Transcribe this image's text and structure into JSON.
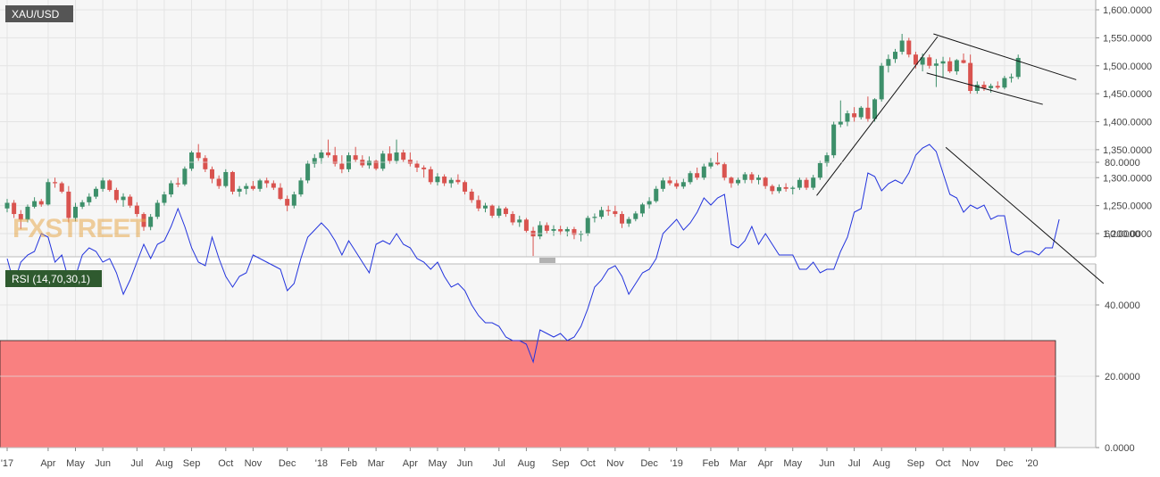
{
  "chart_data": {
    "type": "candlestick",
    "price_panel": {
      "label": "XAU/USD",
      "watermark": "FXSTREET",
      "y_ticks": [
        "1,600.0000",
        "1,550.0000",
        "1,500.0000",
        "1,450.0000",
        "1,400.0000",
        "1,350.0000",
        "1,300.0000",
        "1,250.0000",
        "1,200.0000"
      ],
      "ylim": [
        1160,
        1610
      ],
      "grid": true,
      "up_color": "#3d8f6a",
      "down_color": "#d9534f",
      "candles": [
        [
          1245,
          1262,
          1238,
          1255
        ],
        [
          1255,
          1260,
          1228,
          1235
        ],
        [
          1235,
          1242,
          1208,
          1225
        ],
        [
          1225,
          1252,
          1220,
          1248
        ],
        [
          1248,
          1265,
          1245,
          1258
        ],
        [
          1258,
          1262,
          1248,
          1252
        ],
        [
          1252,
          1298,
          1250,
          1292
        ],
        [
          1292,
          1300,
          1282,
          1290
        ],
        [
          1290,
          1293,
          1272,
          1275
        ],
        [
          1275,
          1285,
          1220,
          1228
        ],
        [
          1228,
          1255,
          1222,
          1248
        ],
        [
          1248,
          1260,
          1244,
          1256
        ],
        [
          1256,
          1272,
          1250,
          1266
        ],
        [
          1266,
          1284,
          1262,
          1280
        ],
        [
          1280,
          1300,
          1275,
          1295
        ],
        [
          1295,
          1297,
          1275,
          1278
        ],
        [
          1278,
          1282,
          1255,
          1260
        ],
        [
          1260,
          1272,
          1248,
          1266
        ],
        [
          1266,
          1270,
          1246,
          1250
        ],
        [
          1250,
          1256,
          1230,
          1235
        ],
        [
          1235,
          1238,
          1205,
          1212
        ],
        [
          1212,
          1235,
          1206,
          1230
        ],
        [
          1230,
          1260,
          1226,
          1255
        ],
        [
          1255,
          1275,
          1250,
          1270
        ],
        [
          1270,
          1295,
          1265,
          1290
        ],
        [
          1290,
          1300,
          1283,
          1288
        ],
        [
          1288,
          1320,
          1285,
          1316
        ],
        [
          1316,
          1348,
          1312,
          1345
        ],
        [
          1345,
          1360,
          1330,
          1335
        ],
        [
          1335,
          1340,
          1310,
          1315
        ],
        [
          1315,
          1320,
          1290,
          1298
        ],
        [
          1298,
          1304,
          1280,
          1285
        ],
        [
          1285,
          1315,
          1282,
          1310
        ],
        [
          1310,
          1312,
          1270,
          1275
        ],
        [
          1275,
          1285,
          1266,
          1280
        ],
        [
          1280,
          1290,
          1270,
          1285
        ],
        [
          1285,
          1294,
          1277,
          1280
        ],
        [
          1280,
          1298,
          1275,
          1295
        ],
        [
          1295,
          1300,
          1282,
          1290
        ],
        [
          1290,
          1295,
          1278,
          1282
        ],
        [
          1282,
          1290,
          1260,
          1262
        ],
        [
          1262,
          1268,
          1240,
          1250
        ],
        [
          1250,
          1275,
          1245,
          1270
        ],
        [
          1270,
          1300,
          1266,
          1295
        ],
        [
          1295,
          1330,
          1290,
          1325
        ],
        [
          1325,
          1342,
          1318,
          1335
        ],
        [
          1335,
          1350,
          1325,
          1345
        ],
        [
          1345,
          1368,
          1336,
          1340
        ],
        [
          1340,
          1355,
          1320,
          1325
        ],
        [
          1325,
          1340,
          1308,
          1315
        ],
        [
          1315,
          1345,
          1310,
          1340
        ],
        [
          1340,
          1355,
          1328,
          1332
        ],
        [
          1332,
          1340,
          1318,
          1322
        ],
        [
          1322,
          1338,
          1316,
          1330
        ],
        [
          1330,
          1332,
          1313,
          1316
        ],
        [
          1316,
          1348,
          1312,
          1343
        ],
        [
          1343,
          1356,
          1325,
          1330
        ],
        [
          1330,
          1368,
          1325,
          1345
        ],
        [
          1345,
          1350,
          1328,
          1332
        ],
        [
          1332,
          1345,
          1320,
          1325
        ],
        [
          1325,
          1330,
          1310,
          1318
        ],
        [
          1318,
          1322,
          1300,
          1315
        ],
        [
          1315,
          1320,
          1288,
          1292
        ],
        [
          1292,
          1308,
          1286,
          1302
        ],
        [
          1302,
          1306,
          1285,
          1290
        ],
        [
          1290,
          1300,
          1282,
          1296
        ],
        [
          1296,
          1306,
          1288,
          1292
        ],
        [
          1292,
          1295,
          1270,
          1275
        ],
        [
          1275,
          1280,
          1255,
          1260
        ],
        [
          1260,
          1268,
          1240,
          1245
        ],
        [
          1245,
          1255,
          1238,
          1250
        ],
        [
          1250,
          1252,
          1228,
          1232
        ],
        [
          1232,
          1250,
          1228,
          1245
        ],
        [
          1245,
          1248,
          1230,
          1235
        ],
        [
          1235,
          1240,
          1215,
          1220
        ],
        [
          1220,
          1232,
          1212,
          1225
        ],
        [
          1225,
          1228,
          1202,
          1205
        ],
        [
          1205,
          1212,
          1160,
          1195
        ],
        [
          1195,
          1222,
          1190,
          1215
        ],
        [
          1215,
          1220,
          1200,
          1205
        ],
        [
          1205,
          1215,
          1196,
          1208
        ],
        [
          1208,
          1214,
          1198,
          1204
        ],
        [
          1204,
          1212,
          1195,
          1208
        ],
        [
          1208,
          1212,
          1190,
          1198
        ],
        [
          1198,
          1205,
          1186,
          1200
        ],
        [
          1200,
          1232,
          1196,
          1228
        ],
        [
          1228,
          1236,
          1220,
          1230
        ],
        [
          1230,
          1248,
          1226,
          1242
        ],
        [
          1242,
          1250,
          1232,
          1240
        ],
        [
          1240,
          1250,
          1230,
          1235
        ],
        [
          1235,
          1240,
          1210,
          1218
        ],
        [
          1218,
          1230,
          1212,
          1226
        ],
        [
          1226,
          1240,
          1222,
          1236
        ],
        [
          1236,
          1255,
          1230,
          1252
        ],
        [
          1252,
          1265,
          1245,
          1258
        ],
        [
          1258,
          1285,
          1255,
          1280
        ],
        [
          1280,
          1300,
          1275,
          1295
        ],
        [
          1295,
          1302,
          1286,
          1290
        ],
        [
          1290,
          1296,
          1280,
          1284
        ],
        [
          1284,
          1298,
          1280,
          1292
        ],
        [
          1292,
          1312,
          1288,
          1308
        ],
        [
          1308,
          1318,
          1296,
          1300
        ],
        [
          1300,
          1325,
          1296,
          1320
        ],
        [
          1320,
          1335,
          1316,
          1328
        ],
        [
          1328,
          1345,
          1322,
          1324
        ],
        [
          1324,
          1328,
          1295,
          1300
        ],
        [
          1300,
          1302,
          1282,
          1290
        ],
        [
          1290,
          1300,
          1286,
          1296
        ],
        [
          1296,
          1310,
          1290,
          1306
        ],
        [
          1306,
          1310,
          1290,
          1296
        ],
        [
          1296,
          1305,
          1288,
          1300
        ],
        [
          1300,
          1302,
          1280,
          1285
        ],
        [
          1285,
          1288,
          1270,
          1276
        ],
        [
          1276,
          1288,
          1272,
          1283
        ],
        [
          1283,
          1290,
          1275,
          1280
        ],
        [
          1280,
          1285,
          1270,
          1282
        ],
        [
          1282,
          1300,
          1278,
          1296
        ],
        [
          1296,
          1300,
          1278,
          1282
        ],
        [
          1282,
          1305,
          1278,
          1300
        ],
        [
          1300,
          1330,
          1296,
          1326
        ],
        [
          1326,
          1345,
          1320,
          1340
        ],
        [
          1340,
          1400,
          1335,
          1395
        ],
        [
          1395,
          1438,
          1390,
          1400
        ],
        [
          1400,
          1420,
          1392,
          1415
        ],
        [
          1415,
          1426,
          1400,
          1408
        ],
        [
          1408,
          1428,
          1404,
          1425
        ],
        [
          1425,
          1445,
          1400,
          1405
        ],
        [
          1405,
          1442,
          1400,
          1440
        ],
        [
          1440,
          1505,
          1436,
          1500
        ],
        [
          1500,
          1520,
          1488,
          1512
        ],
        [
          1512,
          1530,
          1505,
          1525
        ],
        [
          1525,
          1557,
          1520,
          1545
        ],
        [
          1545,
          1550,
          1515,
          1520
        ],
        [
          1520,
          1525,
          1495,
          1502
        ],
        [
          1502,
          1522,
          1490,
          1515
        ],
        [
          1515,
          1520,
          1495,
          1500
        ],
        [
          1500,
          1512,
          1462,
          1504
        ],
        [
          1504,
          1516,
          1478,
          1508
        ],
        [
          1508,
          1515,
          1487,
          1490
        ],
        [
          1490,
          1512,
          1484,
          1510
        ],
        [
          1510,
          1522,
          1504,
          1505
        ],
        [
          1505,
          1520,
          1450,
          1455
        ],
        [
          1455,
          1472,
          1450,
          1466
        ],
        [
          1466,
          1472,
          1455,
          1460
        ],
        [
          1460,
          1468,
          1452,
          1464
        ],
        [
          1464,
          1472,
          1458,
          1461
        ],
        [
          1461,
          1482,
          1458,
          1478
        ],
        [
          1478,
          1486,
          1470,
          1480
        ],
        [
          1480,
          1520,
          1476,
          1514
        ]
      ],
      "trendlines": [
        {
          "name": "uptrend-line",
          "from": [
            118.5,
            1268
          ],
          "to": [
            136.2,
            1552
          ]
        },
        {
          "name": "channel-upper-line",
          "from": [
            135.6,
            1557
          ],
          "to": [
            156.5,
            1475
          ]
        },
        {
          "name": "channel-lower-line",
          "from": [
            134.6,
            1487
          ],
          "to": [
            151.6,
            1431
          ]
        }
      ]
    },
    "rsi_panel": {
      "label": "RSI (14,70,30,1)",
      "y_ticks": [
        "80.0000",
        "60.0000",
        "40.0000",
        "20.0000",
        "0.0000"
      ],
      "ylim": [
        0,
        100
      ],
      "overbought_level": 70,
      "oversold_level": 30,
      "overbought_color": "#7dfa7d",
      "oversold_color": "#f98080",
      "line_color": "#2233dd",
      "values": [
        53,
        46,
        52,
        54,
        55,
        60,
        59,
        52,
        54,
        47,
        48,
        54,
        56,
        55,
        52,
        53,
        49,
        43,
        47,
        52,
        57,
        53,
        57,
        58,
        62,
        67,
        62,
        56,
        52,
        51,
        59,
        53,
        48,
        45,
        48,
        49,
        54,
        53,
        52,
        51,
        50,
        44,
        46,
        53,
        59,
        61,
        63,
        61,
        58,
        54,
        58,
        55,
        52,
        49,
        57,
        58,
        57,
        60,
        57,
        56,
        53,
        52,
        50,
        52,
        48,
        45,
        46,
        44,
        40,
        37,
        35,
        35,
        34,
        31,
        30,
        30,
        29,
        24,
        33,
        32,
        31,
        32,
        30,
        31,
        34,
        39,
        45,
        47,
        50,
        51,
        48,
        43,
        46,
        49,
        50,
        53,
        60,
        62,
        64,
        61,
        63,
        66,
        70,
        68,
        70,
        71,
        57,
        56,
        58,
        62,
        57,
        60,
        57,
        54,
        54,
        54,
        50,
        50,
        52,
        49,
        50,
        50,
        55,
        59,
        66,
        67,
        77,
        76,
        72,
        74,
        75,
        74,
        77,
        82,
        84,
        85,
        83,
        77,
        71,
        70,
        66,
        68,
        67,
        68,
        64,
        65,
        65,
        55,
        54,
        55,
        55,
        54,
        56,
        56,
        64
      ],
      "trendlines": [
        {
          "name": "rsi-trendline",
          "from": [
            137.4,
            84.2
          ],
          "to": [
            160.5,
            46
          ]
        }
      ]
    },
    "x_axis": {
      "ticks": [
        {
          "label": "'17",
          "index": 0
        },
        {
          "label": "Apr",
          "index": 6
        },
        {
          "label": "May",
          "index": 10
        },
        {
          "label": "Jun",
          "index": 14
        },
        {
          "label": "Jul",
          "index": 19
        },
        {
          "label": "Aug",
          "index": 23
        },
        {
          "label": "Sep",
          "index": 27
        },
        {
          "label": "Oct",
          "index": 32
        },
        {
          "label": "Nov",
          "index": 36
        },
        {
          "label": "Dec",
          "index": 41
        },
        {
          "label": "'18",
          "index": 46
        },
        {
          "label": "Feb",
          "index": 50
        },
        {
          "label": "Mar",
          "index": 54
        },
        {
          "label": "Apr",
          "index": 59
        },
        {
          "label": "May",
          "index": 63
        },
        {
          "label": "Jun",
          "index": 67
        },
        {
          "label": "Jul",
          "index": 72
        },
        {
          "label": "Aug",
          "index": 76
        },
        {
          "label": "Sep",
          "index": 81
        },
        {
          "label": "Oct",
          "index": 85
        },
        {
          "label": "Nov",
          "index": 89
        },
        {
          "label": "Dec",
          "index": 94
        },
        {
          "label": "'19",
          "index": 98
        },
        {
          "label": "Feb",
          "index": 103
        },
        {
          "label": "Mar",
          "index": 107
        },
        {
          "label": "Apr",
          "index": 111
        },
        {
          "label": "May",
          "index": 115
        },
        {
          "label": "Jun",
          "index": 120
        },
        {
          "label": "Jul",
          "index": 124
        },
        {
          "label": "Aug",
          "index": 128
        },
        {
          "label": "Sep",
          "index": 133
        },
        {
          "label": "Oct",
          "index": 137
        },
        {
          "label": "Nov",
          "index": 141
        },
        {
          "label": "Dec",
          "index": 146
        },
        {
          "label": "'20",
          "index": 150
        }
      ]
    }
  }
}
